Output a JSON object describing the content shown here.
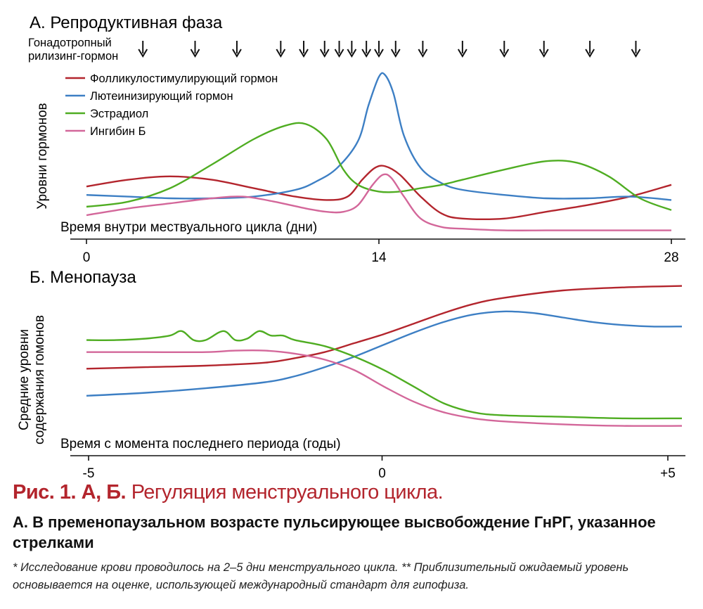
{
  "chart_data": [
    {
      "type": "line",
      "title": "А. Репродуктивная фаза",
      "ylabel": "Уровни гормонов",
      "xlabel": "Время внутри мествуального цикла (дни)",
      "xticks": [
        "0",
        "14",
        "28"
      ],
      "xlim": [
        0,
        28
      ],
      "ylim": [
        0,
        100
      ],
      "grid": false,
      "legend_position": "top-left",
      "pulse_label": "Гонадотропный рилизинг-гормон",
      "pulse_label_lines": [
        "Гонадотропный",
        "рилизинг-гормон"
      ],
      "gnrh_pulses_days": [
        2.7,
        5.2,
        7.2,
        9.3,
        10.4,
        11.4,
        12.1,
        12.7,
        13.4,
        14.0,
        14.8,
        16.1,
        18.0,
        20.0,
        21.9,
        24.1,
        26.3
      ],
      "series": [
        {
          "name": "Фолликулостимулирующий гормон",
          "color": "#b3252d",
          "x": [
            0,
            2,
            4,
            6,
            8,
            10,
            11.5,
            12.5,
            13.2,
            13.8,
            14.3,
            15,
            16,
            17,
            18,
            20,
            22,
            24,
            26,
            28
          ],
          "y": [
            27,
            31,
            33,
            31,
            26,
            21,
            19,
            21,
            31,
            38,
            39,
            34,
            21,
            11,
            8,
            8,
            12,
            16,
            21,
            28
          ]
        },
        {
          "name": "Лютеинизирующий гормон",
          "color": "#3d7fc4",
          "x": [
            0,
            2,
            4,
            6,
            8,
            10,
            11,
            12,
            13,
            13.5,
            14,
            14.3,
            14.7,
            15.2,
            16,
            17,
            18,
            20,
            22,
            24,
            26,
            28
          ],
          "y": [
            22,
            21,
            20,
            20,
            21,
            25,
            30,
            38,
            54,
            75,
            92,
            93,
            82,
            57,
            38,
            29,
            25,
            22,
            20,
            20,
            21,
            19
          ]
        },
        {
          "name": "Эстрадиол",
          "color": "#4fad22",
          "x": [
            0,
            2,
            4,
            6,
            8,
            9.5,
            10.5,
            11.5,
            12.3,
            13,
            14,
            15,
            16,
            17,
            18,
            20,
            22,
            23.5,
            25,
            26.5,
            28
          ],
          "y": [
            15,
            18,
            26,
            40,
            55,
            63,
            64,
            55,
            37,
            28,
            24,
            24,
            26,
            28,
            31,
            37,
            42,
            41,
            33,
            20,
            13
          ]
        },
        {
          "name": "Ингибин Б",
          "color": "#d3679a",
          "x": [
            0,
            2,
            4,
            6,
            7.5,
            9,
            10.5,
            11.5,
            12.3,
            13,
            13.7,
            14.2,
            14.6,
            15.2,
            16,
            17,
            18,
            20,
            22,
            24,
            26,
            28
          ],
          "y": [
            10,
            14,
            17,
            20,
            21,
            18,
            14,
            12,
            12,
            16,
            28,
            34,
            32,
            21,
            8,
            3,
            2,
            1,
            1,
            1,
            1,
            1
          ]
        }
      ]
    },
    {
      "type": "line",
      "title": "Б. Менопауза",
      "ylabel": "Средние уровни содержания гомонов",
      "ylabel_lines": [
        "Средние уровни",
        "содержания гомонов"
      ],
      "xlabel": "Время с момента последнего периода (годы)",
      "xticks": [
        "-5",
        "0",
        "+5"
      ],
      "xlim": [
        -5,
        5
      ],
      "ylim": [
        0,
        100
      ],
      "grid": false,
      "series": [
        {
          "name": "Фолликулостимулирующий гормон",
          "color": "#b3252d",
          "x": [
            -5,
            -4,
            -3,
            -2,
            -1.5,
            -1,
            -0.5,
            0,
            0.5,
            1,
            1.5,
            2,
            3,
            4,
            5
          ],
          "y": [
            41,
            42,
            43,
            45,
            48,
            52,
            58,
            64,
            71,
            78,
            84,
            88,
            93,
            95,
            96
          ]
        },
        {
          "name": "Лютеинизирующий гормон",
          "color": "#3d7fc4",
          "x": [
            -5,
            -4,
            -3,
            -2,
            -1.5,
            -1,
            -0.5,
            0,
            0.5,
            1,
            1.5,
            2,
            2.5,
            3,
            3.5,
            4,
            4.5,
            5
          ],
          "y": [
            23,
            25,
            28,
            32,
            36,
            42,
            49,
            57,
            65,
            72,
            77,
            79,
            78,
            75,
            72,
            70,
            69,
            69
          ]
        },
        {
          "name": "Эстрадиол",
          "color": "#4fad22",
          "x": [
            -5,
            -4.5,
            -4,
            -3.6,
            -3.4,
            -3.2,
            -3.0,
            -2.7,
            -2.5,
            -2.3,
            -2.1,
            -1.9,
            -1.7,
            -1.5,
            -1,
            -0.5,
            0,
            0.5,
            1,
            1.5,
            2,
            3,
            4,
            5
          ],
          "y": [
            60,
            60,
            61,
            63,
            66,
            60,
            60,
            66,
            60,
            61,
            66,
            63,
            63,
            60,
            56,
            49,
            40,
            29,
            18,
            12,
            10,
            9,
            8,
            8
          ]
        },
        {
          "name": "Ингибин Б",
          "color": "#d3679a",
          "x": [
            -5,
            -4,
            -3,
            -2.5,
            -2,
            -1.5,
            -1,
            -0.5,
            0,
            0.5,
            1,
            1.5,
            2,
            3,
            4,
            5
          ],
          "y": [
            52,
            52,
            52,
            53,
            53,
            51,
            47,
            40,
            29,
            19,
            12,
            8,
            6,
            4,
            3,
            3
          ]
        }
      ]
    }
  ],
  "caption": {
    "title_bold": "Рис. 1. А, Б.",
    "title_rest": "Регуляция менструального цикла.",
    "subtitle": "А. В пременопаузальном возрасте пульсирующее высвобождение ГнРГ, указанное стрелками",
    "note": "* Исследование крови проводилось на 2–5 дни менструального цикла. ** Приблизительный ожидаемый уровень основывается на оценке, использующей международный стандарт для гипофиза."
  },
  "colors": {
    "caption_red": "#b3252d",
    "axis": "#111111"
  }
}
